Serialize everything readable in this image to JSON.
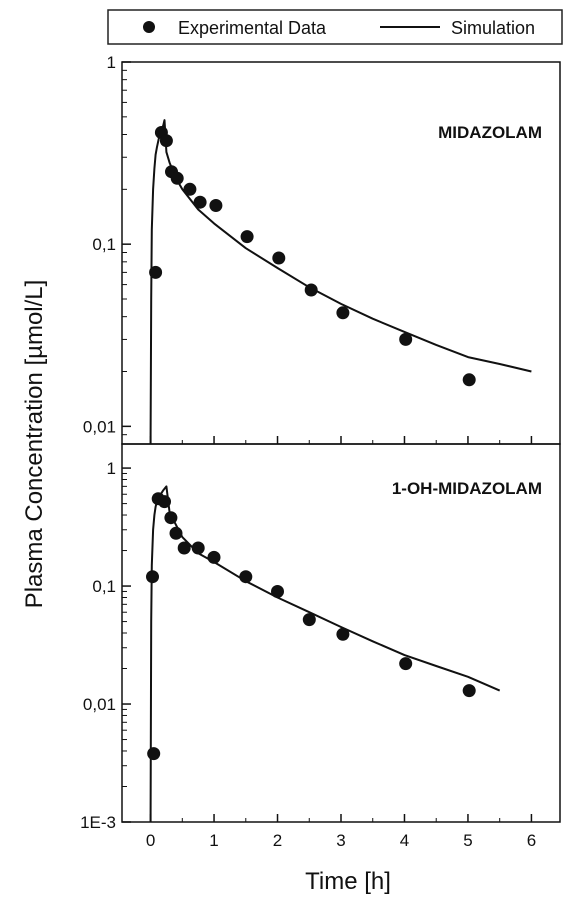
{
  "chart_data": {
    "type": "scatter",
    "ylabel": "Plasma Concentration [µmol/L]",
    "xlabel": "Time [h]",
    "legend": {
      "position": "top",
      "entries": [
        {
          "label": "Experimental Data",
          "marker": "circle"
        },
        {
          "label": "Simulation",
          "marker": "line"
        }
      ]
    },
    "x_axis": {
      "range": [
        -0.45,
        6.45
      ],
      "ticks": [
        0,
        1,
        2,
        3,
        4,
        5,
        6
      ],
      "tick_labels": [
        "0",
        "1",
        "2",
        "3",
        "4",
        "5",
        "6"
      ]
    },
    "panels": [
      {
        "title": "MIDAZOLAM",
        "y_scale": "log",
        "ylim": [
          0.008,
          1
        ],
        "y_ticks": [
          0.01,
          0.1,
          1
        ],
        "y_tick_labels": [
          "0,01",
          "0,1",
          "1"
        ],
        "series": [
          {
            "name": "Experimental Data",
            "kind": "scatter",
            "x": [
              0.08,
              0.17,
              0.25,
              0.33,
              0.42,
              0.62,
              0.78,
              1.03,
              1.52,
              2.02,
              2.53,
              3.03,
              4.02,
              5.02
            ],
            "y": [
              0.07,
              0.41,
              0.37,
              0.25,
              0.23,
              0.2,
              0.17,
              0.163,
              0.11,
              0.084,
              0.056,
              0.042,
              0.03,
              0.018
            ]
          },
          {
            "name": "Simulation",
            "kind": "line",
            "x": [
              0.0,
              0.0001,
              0.01,
              0.02,
              0.04,
              0.06,
              0.08,
              0.1,
              0.13,
              0.16,
              0.2,
              0.22,
              0.25,
              0.3,
              0.4,
              0.5,
              0.75,
              1.0,
              1.5,
              2.0,
              2.5,
              3.0,
              3.5,
              4.0,
              4.5,
              5.0,
              5.5,
              6.0
            ],
            "y": [
              0.008,
              0.009,
              0.05,
              0.12,
              0.2,
              0.26,
              0.31,
              0.34,
              0.38,
              0.41,
              0.45,
              0.48,
              0.32,
              0.28,
              0.23,
              0.2,
              0.155,
              0.13,
              0.095,
              0.074,
              0.058,
              0.047,
              0.039,
              0.033,
              0.028,
              0.024,
              0.022,
              0.02
            ]
          }
        ]
      },
      {
        "title": "1-OH-MIDAZOLAM",
        "y_scale": "log",
        "ylim": [
          0.001,
          1.6
        ],
        "y_ticks": [
          0.001,
          0.01,
          0.1,
          1
        ],
        "y_tick_labels": [
          "1E-3",
          "0,01",
          "0,1",
          "1"
        ],
        "series": [
          {
            "name": "Experimental Data",
            "kind": "scatter",
            "x": [
              0.03,
              0.05,
              0.12,
              0.22,
              0.32,
              0.4,
              0.53,
              0.75,
              1.0,
              1.5,
              2.0,
              2.5,
              3.03,
              4.02,
              5.02
            ],
            "y": [
              0.12,
              0.0038,
              0.55,
              0.52,
              0.38,
              0.28,
              0.21,
              0.21,
              0.175,
              0.12,
              0.09,
              0.052,
              0.039,
              0.022,
              0.013
            ]
          },
          {
            "name": "Simulation",
            "kind": "line",
            "x": [
              0.0,
              0.0001,
              0.01,
              0.02,
              0.04,
              0.06,
              0.08,
              0.1,
              0.13,
              0.16,
              0.2,
              0.25,
              0.3,
              0.4,
              0.5,
              0.75,
              1.0,
              1.5,
              2.0,
              2.5,
              3.0,
              3.5,
              4.0,
              4.5,
              5.0,
              5.5
            ],
            "y": [
              0.001,
              0.0012,
              0.05,
              0.15,
              0.3,
              0.4,
              0.47,
              0.52,
              0.57,
              0.6,
              0.65,
              0.7,
              0.42,
              0.33,
              0.26,
              0.19,
              0.16,
              0.11,
              0.08,
              0.06,
              0.045,
              0.034,
              0.026,
              0.021,
              0.017,
              0.013
            ]
          }
        ]
      }
    ]
  }
}
